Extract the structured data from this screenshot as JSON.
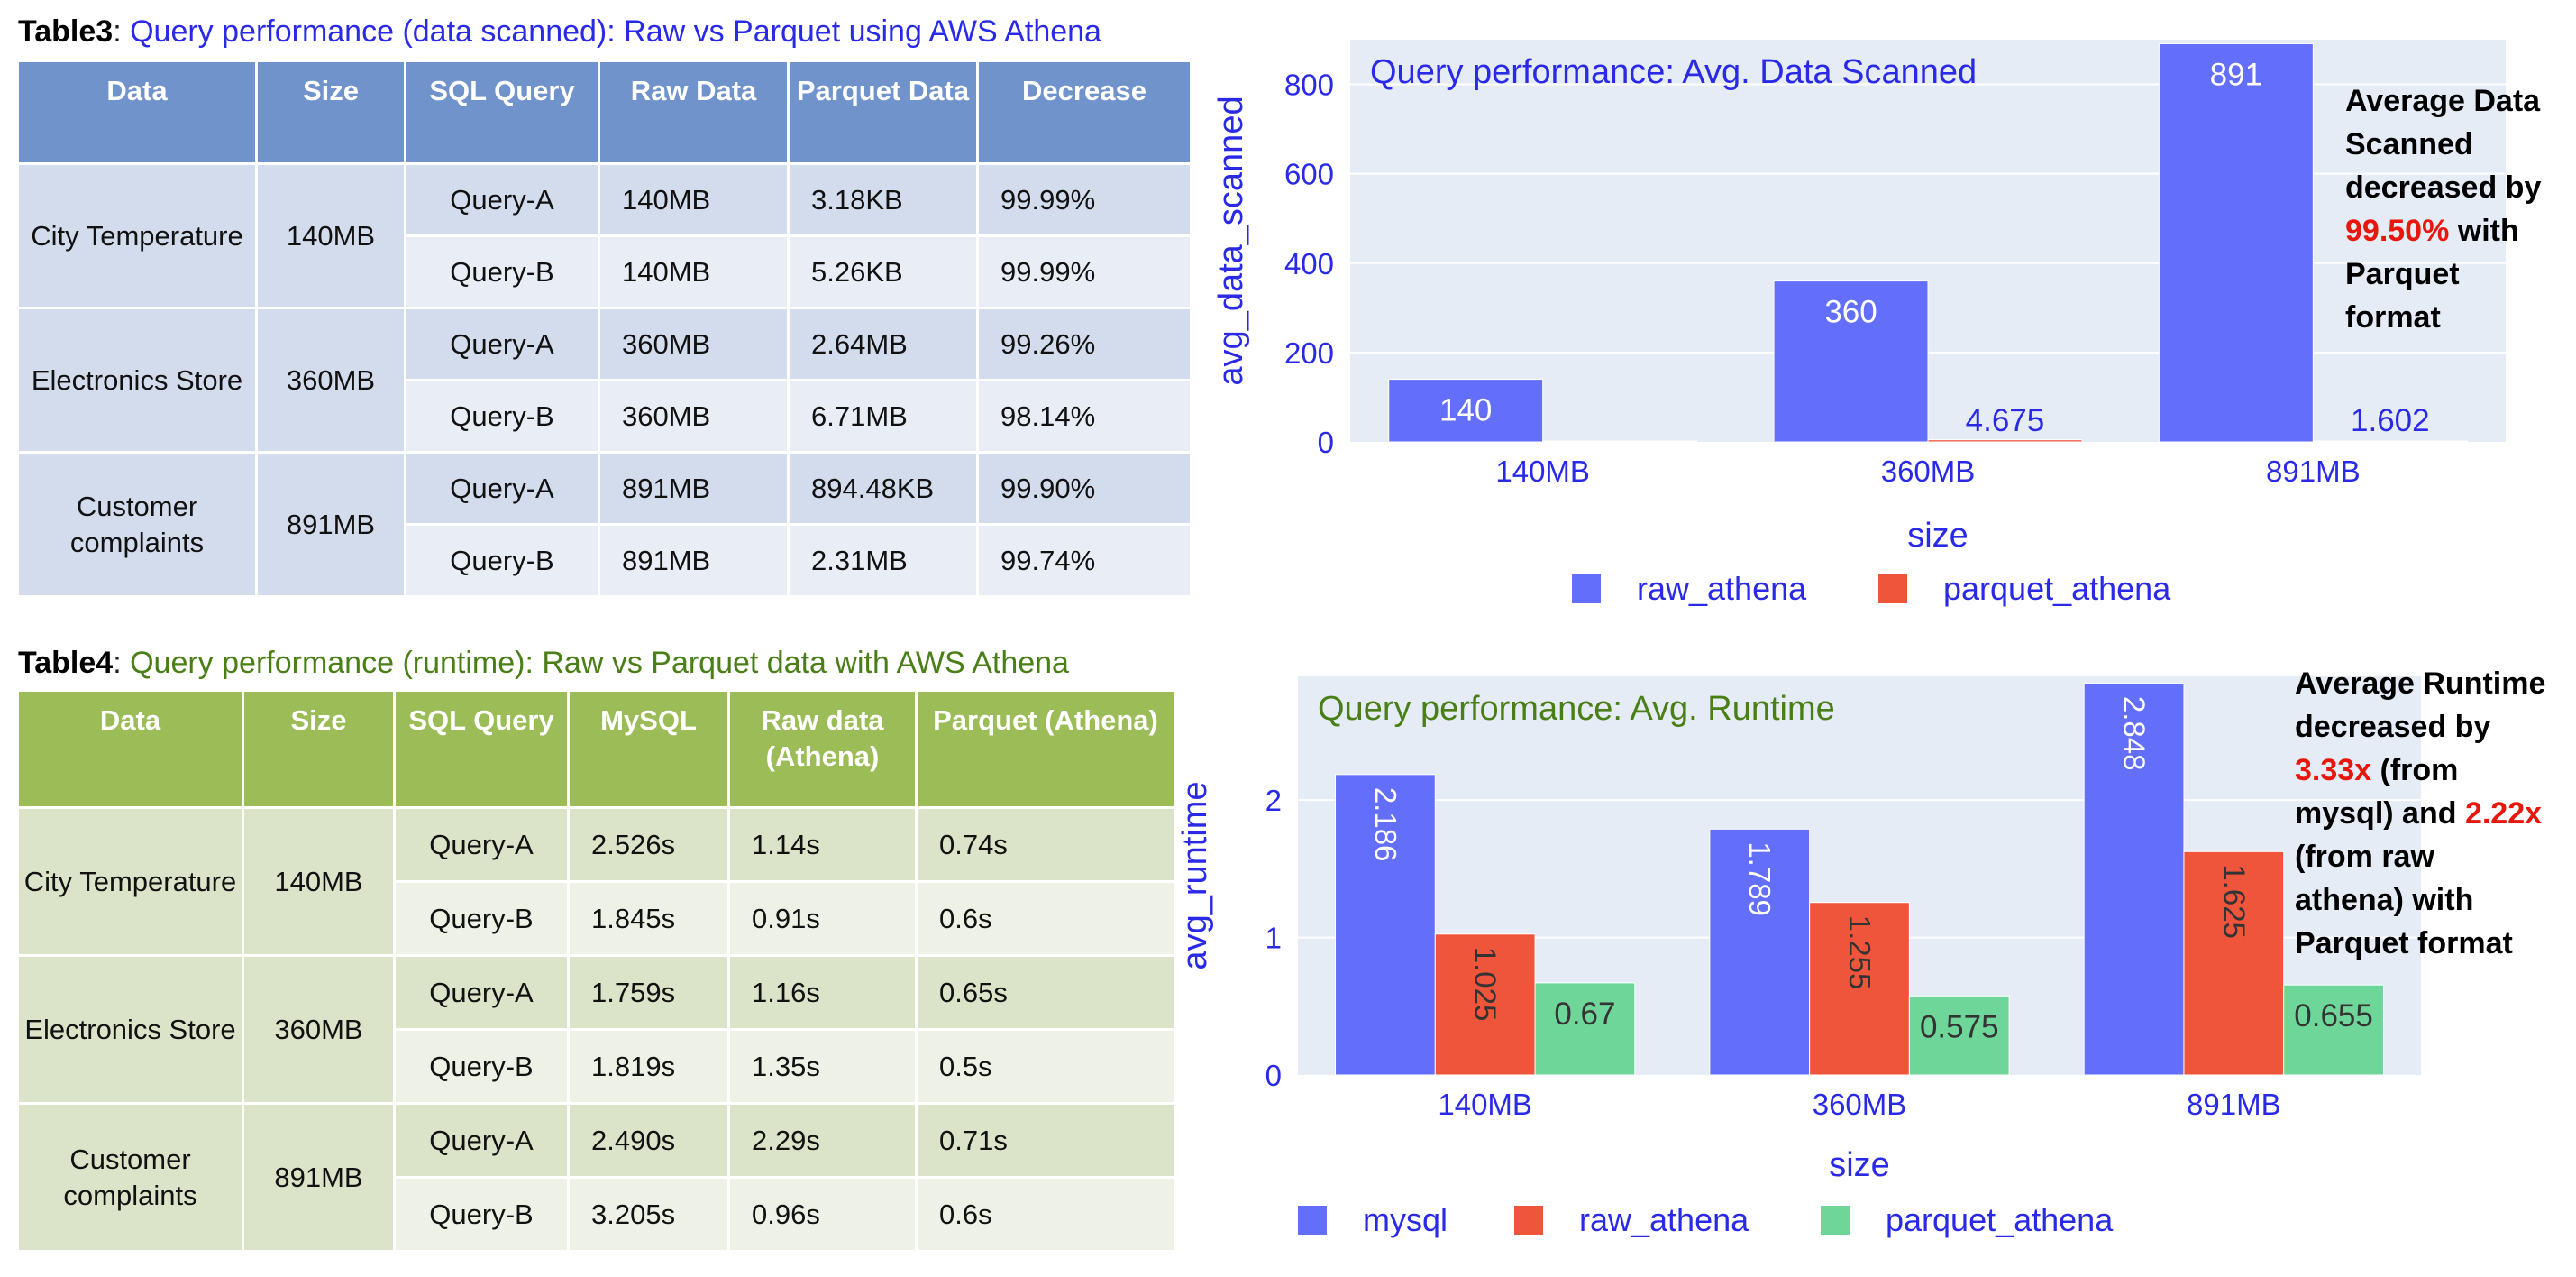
{
  "table3": {
    "tag": "Table3",
    "colon": ": ",
    "title": "Query performance (data scanned): Raw vs Parquet using AWS Athena",
    "headers": [
      "Data",
      "Size",
      "SQL Query",
      "Raw Data",
      "Parquet Data",
      "Decrease"
    ],
    "groups": [
      {
        "data": "City Temperature",
        "size": "140MB",
        "rows": [
          {
            "query": "Query-A",
            "raw": "140MB",
            "parquet": "3.18KB",
            "decrease": "99.99%"
          },
          {
            "query": "Query-B",
            "raw": "140MB",
            "parquet": "5.26KB",
            "decrease": "99.99%"
          }
        ]
      },
      {
        "data": "Electronics Store",
        "size": "360MB",
        "rows": [
          {
            "query": "Query-A",
            "raw": "360MB",
            "parquet": "2.64MB",
            "decrease": "99.26%"
          },
          {
            "query": "Query-B",
            "raw": "360MB",
            "parquet": "6.71MB",
            "decrease": "98.14%"
          }
        ]
      },
      {
        "data": "Customer complaints",
        "size": "891MB",
        "rows": [
          {
            "query": "Query-A",
            "raw": "891MB",
            "parquet": "894.48KB",
            "decrease": "99.90%"
          },
          {
            "query": "Query-B",
            "raw": "891MB",
            "parquet": "2.31MB",
            "decrease": "99.74%"
          }
        ]
      }
    ]
  },
  "table4": {
    "tag": "Table4",
    "colon": ": ",
    "title": "Query performance (runtime): Raw vs Parquet data with AWS Athena",
    "headers": [
      "Data",
      "Size",
      "SQL Query",
      "MySQL",
      "Raw  data (Athena)",
      "Parquet (Athena)"
    ],
    "groups": [
      {
        "data": "City Temperature",
        "size": "140MB",
        "rows": [
          {
            "query": "Query-A",
            "mysql": "2.526s",
            "raw": "1.14s",
            "parquet": "0.74s"
          },
          {
            "query": "Query-B",
            "mysql": "1.845s",
            "raw": "0.91s",
            "parquet": "0.6s"
          }
        ]
      },
      {
        "data": "Electronics Store",
        "size": "360MB",
        "rows": [
          {
            "query": "Query-A",
            "mysql": "1.759s",
            "raw": "1.16s",
            "parquet": "0.65s"
          },
          {
            "query": "Query-B",
            "mysql": "1.819s",
            "raw": "1.35s",
            "parquet": "0.5s"
          }
        ]
      },
      {
        "data": "Customer complaints",
        "size": "891MB",
        "rows": [
          {
            "query": "Query-A",
            "mysql": "2.490s",
            "raw": "2.29s",
            "parquet": "0.71s"
          },
          {
            "query": "Query-B",
            "mysql": "3.205s",
            "raw": "0.96s",
            "parquet": "0.6s"
          }
        ]
      }
    ]
  },
  "chart_data": [
    {
      "type": "bar",
      "title": "Query performance: Avg. Data Scanned",
      "xlabel": "size",
      "ylabel": "avg_data_scanned",
      "categories": [
        "140MB",
        "360MB",
        "891MB"
      ],
      "series": [
        {
          "name": "raw_athena",
          "values": [
            140,
            360,
            891
          ],
          "labels": [
            "140",
            "360",
            "891"
          ],
          "color": "#636efa"
        },
        {
          "name": "parquet_athena",
          "values": [
            0.008,
            4.675,
            1.602
          ],
          "labels": [
            "",
            "4.675",
            "1.602"
          ],
          "color": "#ef553b"
        }
      ],
      "ylim": [
        0,
        900
      ],
      "yticks": [
        0,
        200,
        400,
        600,
        800
      ],
      "grid": true,
      "legend": "bottom",
      "label_orientation": "horizontal",
      "title_color": "#2a2ae6",
      "axis_text_color": "#2a2ae6",
      "plot_bg": "#e5ecf6"
    },
    {
      "type": "bar",
      "title": "Query performance: Avg. Runtime",
      "xlabel": "size",
      "ylabel": "avg_runtime",
      "categories": [
        "140MB",
        "360MB",
        "891MB"
      ],
      "series": [
        {
          "name": "mysql",
          "values": [
            2.186,
            1.789,
            2.848
          ],
          "labels": [
            "2.186",
            "1.789",
            "2.848"
          ],
          "color": "#636efa"
        },
        {
          "name": "raw_athena",
          "values": [
            1.025,
            1.255,
            1.625
          ],
          "labels": [
            "1.025",
            "1.255",
            "1.625"
          ],
          "color": "#ef553b"
        },
        {
          "name": "parquet_athena",
          "values": [
            0.67,
            0.575,
            0.655
          ],
          "labels": [
            "0.67",
            "0.575",
            "0.655"
          ],
          "color": "#6fd69a"
        }
      ],
      "ylim": [
        0,
        2.9
      ],
      "yticks": [
        0,
        1,
        2
      ],
      "grid": true,
      "legend": "bottom",
      "label_orientation": "vertical-for-tall-bars",
      "title_color": "#4a7e16",
      "axis_text_color": "#2a2ae6",
      "plot_bg": "#e5ecf6"
    }
  ],
  "notes": {
    "scanned": {
      "line1": "Average Data",
      "line2": "Scanned",
      "line3": "decreased by",
      "pct": "99.50%",
      "pct_rest": " with",
      "line5": "Parquet",
      "line6": "format"
    },
    "runtime": {
      "line1": "Average Runtime",
      "line2": "decreased by",
      "x1": "3.33x",
      "x1_rest": " (from",
      "line4a": "mysql) and ",
      "x2": "2.22x",
      "line5": "(from raw",
      "line6": "athena) with",
      "line7": "Parquet format"
    }
  }
}
